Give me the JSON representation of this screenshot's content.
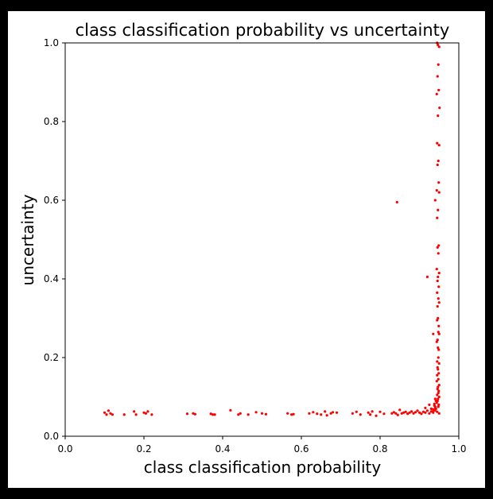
{
  "figure": {
    "background": "#ffffff",
    "frame_color": "#000000"
  },
  "chart_data": {
    "type": "scatter",
    "title": "class classification probability vs uncertainty",
    "xlabel": "class classification probability",
    "ylabel": "uncertainty",
    "xlim": [
      0.0,
      1.0
    ],
    "ylim": [
      0.0,
      1.0
    ],
    "xticks": [
      "0.0",
      "0.2",
      "0.4",
      "0.6",
      "0.8",
      "1.0"
    ],
    "yticks": [
      "0.0",
      "0.2",
      "0.4",
      "0.6",
      "0.8",
      "1.0"
    ],
    "grid": false,
    "legend": "none",
    "marker_color": "#ff0000",
    "series": [
      {
        "x": [
          0.1,
          0.105,
          0.11,
          0.115,
          0.12,
          0.15,
          0.175,
          0.18,
          0.2,
          0.205,
          0.21,
          0.22,
          0.31,
          0.325,
          0.33,
          0.37,
          0.375,
          0.38,
          0.42,
          0.44,
          0.445,
          0.465,
          0.485,
          0.5,
          0.51,
          0.565,
          0.575,
          0.58,
          0.62,
          0.63,
          0.64,
          0.65,
          0.66,
          0.665,
          0.675,
          0.68,
          0.69,
          0.73,
          0.74,
          0.75,
          0.77,
          0.775,
          0.78,
          0.79,
          0.8,
          0.81,
          0.83,
          0.835,
          0.84,
          0.845,
          0.85,
          0.855,
          0.86,
          0.865,
          0.87,
          0.875,
          0.88,
          0.885,
          0.89,
          0.895,
          0.9,
          0.905,
          0.91,
          0.915,
          0.92,
          0.925,
          0.93,
          0.935,
          0.94,
          0.945,
          0.95,
          0.945,
          0.947,
          0.95,
          0.948,
          0.946,
          0.949,
          0.944,
          0.951,
          0.947,
          0.945,
          0.95,
          0.948,
          0.946,
          0.949,
          0.944,
          0.95,
          0.947,
          0.945,
          0.949,
          0.946,
          0.948,
          0.944,
          0.95,
          0.947,
          0.946,
          0.949,
          0.945,
          0.948,
          0.95,
          0.946,
          0.947,
          0.945,
          0.949,
          0.948,
          0.95,
          0.946,
          0.944,
          0.947,
          0.949,
          0.948,
          0.945,
          0.95,
          0.946,
          0.947,
          0.949,
          0.945,
          0.948,
          0.944,
          0.95,
          0.947,
          0.946,
          0.949,
          0.948,
          0.945,
          0.95,
          0.947,
          0.946,
          0.944,
          0.949,
          0.948,
          0.93,
          0.935,
          0.94,
          0.938,
          0.936,
          0.942,
          0.94,
          0.938,
          0.942,
          0.94,
          0.92,
          0.935,
          0.94,
          0.843,
          0.915,
          0.925
        ],
        "y": [
          0.06,
          0.055,
          0.065,
          0.058,
          0.055,
          0.055,
          0.063,
          0.055,
          0.06,
          0.058,
          0.063,
          0.055,
          0.057,
          0.058,
          0.056,
          0.057,
          0.055,
          0.055,
          0.066,
          0.055,
          0.058,
          0.055,
          0.061,
          0.058,
          0.056,
          0.058,
          0.055,
          0.056,
          0.058,
          0.061,
          0.057,
          0.055,
          0.063,
          0.053,
          0.058,
          0.061,
          0.06,
          0.058,
          0.062,
          0.055,
          0.06,
          0.055,
          0.063,
          0.052,
          0.062,
          0.057,
          0.058,
          0.061,
          0.058,
          0.054,
          0.067,
          0.058,
          0.06,
          0.062,
          0.057,
          0.06,
          0.063,
          0.058,
          0.061,
          0.065,
          0.06,
          0.057,
          0.062,
          0.06,
          0.065,
          0.058,
          0.063,
          0.06,
          0.066,
          0.062,
          0.058,
          1.0,
          0.995,
          0.99,
          0.945,
          0.915,
          0.88,
          0.87,
          0.835,
          0.815,
          0.745,
          0.74,
          0.7,
          0.69,
          0.645,
          0.625,
          0.62,
          0.575,
          0.555,
          0.485,
          0.48,
          0.465,
          0.425,
          0.415,
          0.405,
          0.395,
          0.38,
          0.365,
          0.35,
          0.34,
          0.33,
          0.3,
          0.295,
          0.28,
          0.265,
          0.26,
          0.245,
          0.24,
          0.225,
          0.22,
          0.2,
          0.19,
          0.185,
          0.175,
          0.17,
          0.16,
          0.155,
          0.145,
          0.14,
          0.13,
          0.125,
          0.12,
          0.115,
          0.11,
          0.105,
          0.1,
          0.095,
          0.09,
          0.085,
          0.08,
          0.075,
          0.07,
          0.068,
          0.072,
          0.078,
          0.065,
          0.07,
          0.075,
          0.082,
          0.09,
          0.095,
          0.405,
          0.26,
          0.6,
          0.595,
          0.072,
          0.08
        ]
      }
    ]
  }
}
